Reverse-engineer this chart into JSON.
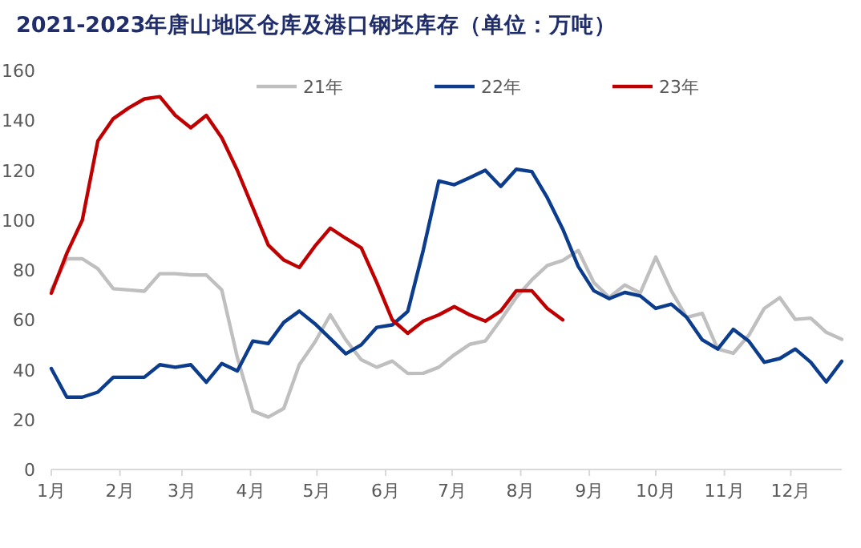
{
  "chart_data": {
    "type": "line",
    "title": "2021-2023年唐山地区仓库及港口钢坯库存（单位：万吨）",
    "x": [
      "--01-01",
      "--01-08",
      "--01-15",
      "--01-22",
      "--01-29",
      "--02-05",
      "--02-12",
      "--02-19",
      "--02-26",
      "--03-05",
      "--03-12",
      "--03-19",
      "--03-26",
      "--04-02",
      "--04-09",
      "--04-16",
      "--04-23",
      "--04-30",
      "--05-07",
      "--05-14",
      "--05-21",
      "--05-28",
      "--06-04",
      "--06-11",
      "--06-18",
      "--06-25",
      "--07-02",
      "--07-09",
      "--07-16",
      "--07-23",
      "--07-30",
      "--08-06",
      "--08-13",
      "--08-20",
      "--08-27",
      "--09-03",
      "--09-10",
      "--09-17",
      "--09-24",
      "--10-01",
      "--10-08",
      "--10-15",
      "--10-22",
      "--10-29",
      "--11-05",
      "--11-12",
      "--11-19",
      "--11-26",
      "--12-03",
      "--12-10",
      "--12-17",
      "--12-24"
    ],
    "xlim": [
      "--01-01",
      "--12-24"
    ],
    "xticks": [
      {
        "value": "--01-01",
        "label": "1月"
      },
      {
        "value": "--02-01",
        "label": "2月"
      },
      {
        "value": "--03-01",
        "label": "3月"
      },
      {
        "value": "--04-01",
        "label": "4月"
      },
      {
        "value": "--05-01",
        "label": "5月"
      },
      {
        "value": "--06-01",
        "label": "6月"
      },
      {
        "value": "--07-01",
        "label": "7月"
      },
      {
        "value": "--08-01",
        "label": "8月"
      },
      {
        "value": "--09-01",
        "label": "9月"
      },
      {
        "value": "--10-01",
        "label": "10月"
      },
      {
        "value": "--11-01",
        "label": "11月"
      },
      {
        "value": "--12-01",
        "label": "12月"
      }
    ],
    "ylim": [
      0,
      160
    ],
    "yticks": [
      0,
      20,
      40,
      60,
      80,
      100,
      120,
      140,
      160
    ],
    "legend": "top",
    "grid": false,
    "marker": "none",
    "line_style": "solid",
    "series": [
      {
        "name": "21年",
        "color": "#bfbfbf",
        "values": [
          72,
          84.5,
          84.5,
          80.5,
          72.5,
          72,
          71.5,
          78.5,
          78.5,
          78,
          78,
          72,
          45,
          23.5,
          21,
          24.5,
          42,
          51,
          62,
          52,
          44,
          41,
          43.5,
          38.5,
          38.6,
          41,
          46,
          50.2,
          51.5,
          60,
          69,
          76,
          81.8,
          83.8,
          87.8,
          75,
          69,
          74,
          70.8,
          85.2,
          71.7,
          61,
          62.6,
          48.3,
          46.6,
          53.8,
          64.6,
          68.9,
          60.2,
          60.7,
          55,
          52.2
        ]
      },
      {
        "name": "22年",
        "color": "#0c3c8c",
        "values": [
          40.5,
          29,
          29,
          31,
          37,
          37,
          37,
          42,
          41,
          42,
          35,
          42.5,
          39.5,
          51.5,
          50.5,
          59,
          63.5,
          58.5,
          52.5,
          46.4,
          50,
          57,
          58,
          63.4,
          88,
          115.7,
          114.2,
          117,
          120,
          113.5,
          120.4,
          119.5,
          109,
          96.4,
          81.4,
          71.7,
          68.5,
          71,
          69.6,
          64.6,
          66.3,
          61,
          52,
          48.3,
          56.2,
          51.5,
          43,
          44.5,
          48.3,
          43,
          35.1,
          43.4
        ]
      },
      {
        "name": "23年",
        "color": "#c00000",
        "x": [
          "--01-01",
          "--01-08",
          "--01-15",
          "--01-22",
          "--01-29",
          "--02-05",
          "--02-12",
          "--02-19",
          "--02-26",
          "--03-05",
          "--03-12",
          "--03-19",
          "--03-26",
          "--04-02",
          "--04-09",
          "--04-16",
          "--04-23",
          "--04-30",
          "--05-07",
          "--05-14",
          "--05-21",
          "--05-28",
          "--06-04",
          "--06-11",
          "--06-18",
          "--06-25",
          "--07-02",
          "--07-09",
          "--07-16",
          "--07-23",
          "--07-30",
          "--08-06",
          "--08-13",
          "--08-20"
        ],
        "values": [
          70.7,
          86.7,
          100,
          131.7,
          140.7,
          145,
          148.6,
          149.5,
          142,
          137,
          142,
          133,
          120,
          105,
          90,
          84,
          81,
          89.5,
          96.8,
          92.7,
          88.9,
          75,
          60,
          54.6,
          59.5,
          62,
          65.3,
          62,
          59.5,
          63.6,
          71.7,
          71.7,
          64.6,
          60
        ]
      }
    ]
  }
}
